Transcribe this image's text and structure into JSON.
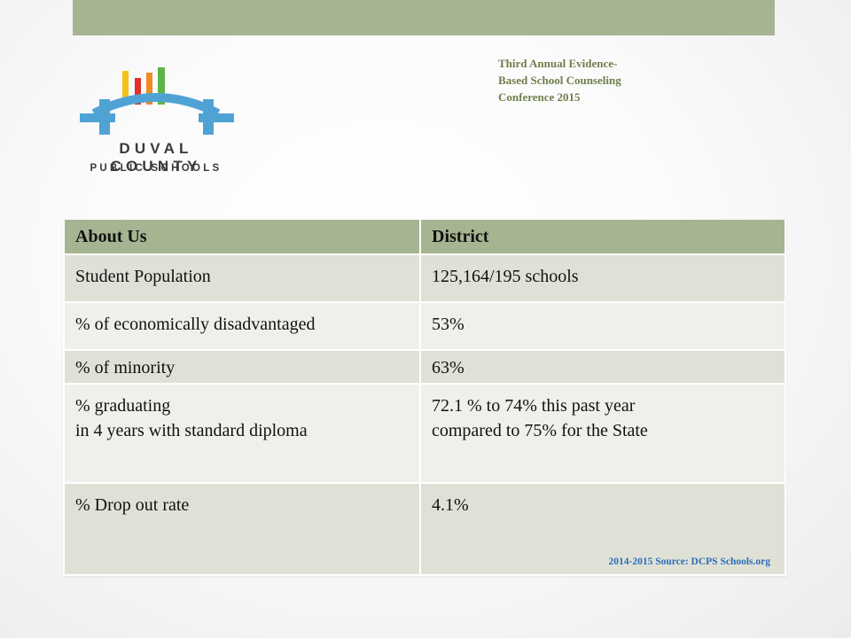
{
  "header": {
    "conference_title": "Third Annual Evidence-\nBased School Counseling\nConference 2015"
  },
  "logo": {
    "line1": "DUVAL COUNTY",
    "line2": "PUBLIC SCHOOLS",
    "colors": {
      "bridge": "#4fa3d4",
      "bar_yellow": "#f2c21b",
      "bar_red": "#e0312b",
      "bar_orange": "#f08a24",
      "bar_green": "#5db446"
    }
  },
  "table": {
    "headers": [
      "About Us",
      "District"
    ],
    "rows": [
      [
        "Student Population",
        "125,164/195 schools"
      ],
      [
        "% of economically disadvantaged",
        "53%"
      ],
      [
        "% of minority",
        "63%"
      ],
      [
        "% graduating\nin 4 years with standard diploma",
        "72.1 % to 74% this past year\ncompared to 75% for the State"
      ],
      [
        "% Drop out rate",
        "4.1%"
      ]
    ]
  },
  "source_note": "2014-2015 Source: DCPS Schools.org",
  "colors": {
    "accent": "#a6b591",
    "row_dark": "#dfe1d7",
    "row_light": "#eff0ea",
    "title_text": "#6f7f4c",
    "source_text": "#2e6db5"
  }
}
